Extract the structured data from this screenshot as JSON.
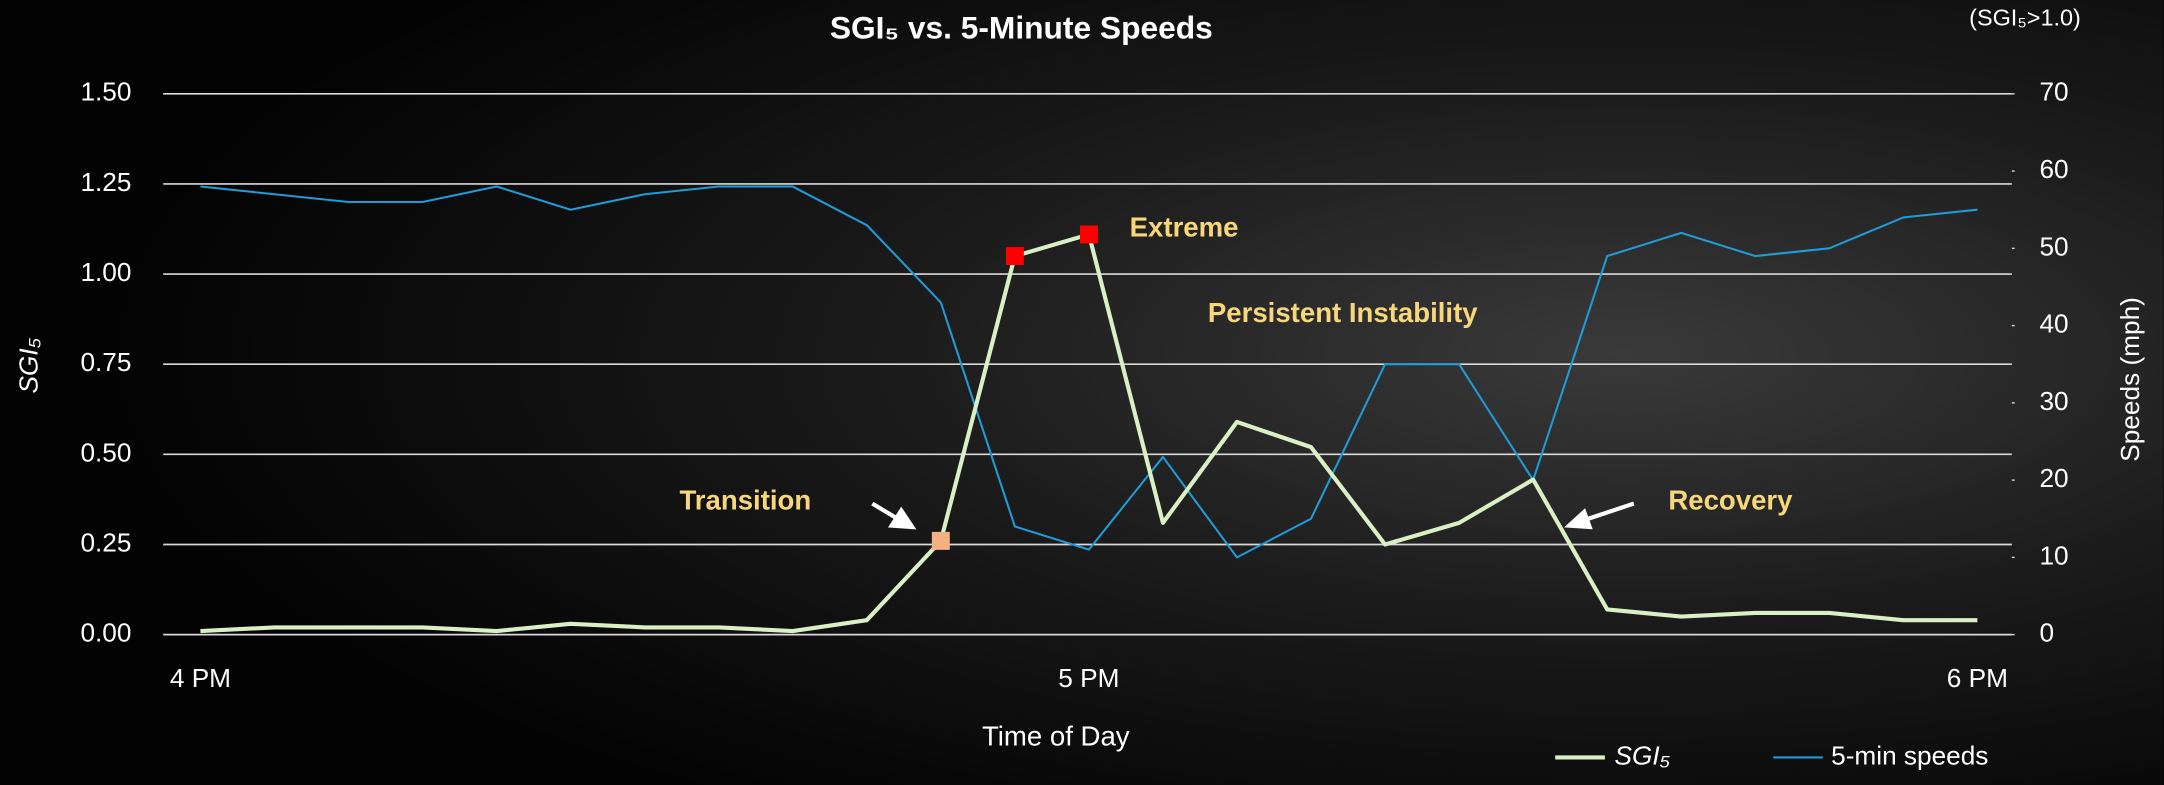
{
  "chart_data": {
    "type": "line",
    "title": "SGI₅ vs. 5-Minute Speeds",
    "note": "(SGI₅>1.0)",
    "x_label": "Time of Day",
    "y_label": "SGI₅",
    "y2_label": "Speeds (mph)",
    "categories": [
      "4 PM",
      null,
      null,
      null,
      null,
      null,
      null,
      null,
      null,
      null,
      null,
      null,
      "5 PM",
      null,
      null,
      null,
      null,
      null,
      null,
      null,
      null,
      null,
      null,
      null,
      "6 PM"
    ],
    "series": [
      {
        "name": "SGI₅",
        "color": "#d8f0c4",
        "values": [
          0.01,
          0.02,
          0.02,
          0.02,
          0.01,
          0.03,
          0.02,
          0.02,
          0.01,
          0.04,
          0.26,
          1.05,
          1.11,
          0.31,
          0.59,
          0.52,
          0.25,
          0.31,
          0.43,
          0.07,
          0.05,
          0.06,
          0.06,
          0.04,
          0.04
        ]
      },
      {
        "name": "5-min speeds",
        "color": "#1f9bd7",
        "axis": "y2",
        "values": [
          58,
          57,
          56,
          56,
          58,
          55,
          57,
          58,
          58,
          53,
          43,
          14,
          11,
          23,
          10,
          15,
          35,
          35,
          20,
          49,
          52,
          49,
          50,
          54,
          55
        ]
      }
    ],
    "markers": [
      {
        "index": 10,
        "color": "#f4b183"
      },
      {
        "index": 11,
        "color": "#ff0000"
      },
      {
        "index": 12,
        "color": "#ff0000"
      }
    ],
    "annotations": [
      "Extreme",
      "Persistent Instability",
      "Transition",
      "Recovery"
    ],
    "ylim": [
      0,
      1.5
    ],
    "yticks": [
      {
        "value": 0,
        "label": "0.00"
      },
      {
        "value": 0.25,
        "label": "0.25"
      },
      {
        "value": 0.5,
        "label": "0.50"
      },
      {
        "value": 0.75,
        "label": "0.75"
      },
      {
        "value": 1,
        "label": "1.00"
      },
      {
        "value": 1.25,
        "label": "1.25"
      },
      {
        "value": 1.5,
        "label": "1.50"
      }
    ],
    "y2lim": [
      0,
      70
    ],
    "y2ticks": [
      0,
      10,
      20,
      30,
      40,
      50,
      60,
      70
    ],
    "grid": true
  }
}
